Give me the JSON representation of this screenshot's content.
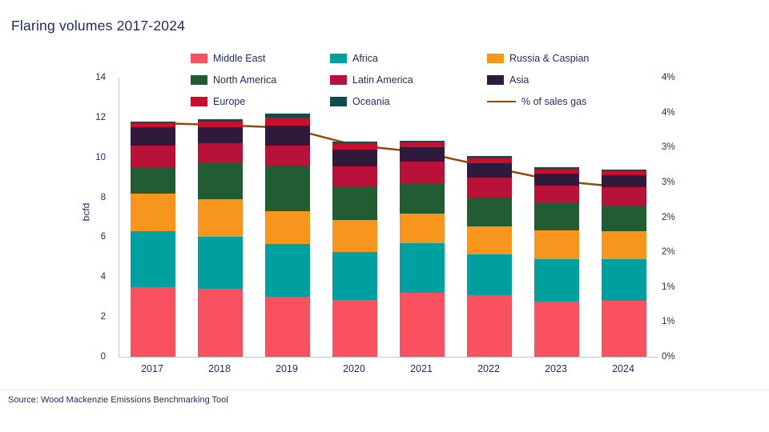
{
  "title": "Flaring volumes 2017-2024",
  "source": "Source: Wood Mackenzie Emissions Benchmarking Tool",
  "colors": {
    "text_navy": "#1F2A5F",
    "axis_gray": "#C6C6C6"
  },
  "legend": [
    {
      "label": "Middle East",
      "color": "#F9515F",
      "type": "box"
    },
    {
      "label": "Africa",
      "color": "#00A0A0",
      "type": "box"
    },
    {
      "label": "Russia & Caspian",
      "color": "#F8951D",
      "type": "box"
    },
    {
      "label": "North America",
      "color": "#215C33",
      "type": "box"
    },
    {
      "label": "Latin America",
      "color": "#B9123A",
      "type": "box"
    },
    {
      "label": "Asia",
      "color": "#2F1A3C",
      "type": "box"
    },
    {
      "label": "Europe",
      "color": "#C8102E",
      "type": "box"
    },
    {
      "label": "Oceania",
      "color": "#0E4D4A",
      "type": "box"
    },
    {
      "label": "% of sales gas",
      "color": "#8B4D08",
      "type": "line"
    }
  ],
  "chart_data": {
    "type": "bar",
    "stacked": true,
    "grid": false,
    "legend_position": "top",
    "categories": [
      "2017",
      "2018",
      "2019",
      "2020",
      "2021",
      "2022",
      "2023",
      "2024"
    ],
    "ylabel_left": "bcfd",
    "left_axis": {
      "min": 0,
      "max": 14,
      "ticks": [
        0,
        2,
        4,
        6,
        8,
        10,
        12,
        14
      ]
    },
    "right_axis": {
      "min": 0,
      "max": 4,
      "tick_labels": [
        "0%",
        "1%",
        "1%",
        "2%",
        "2%",
        "3%",
        "3%",
        "4%",
        "4%"
      ]
    },
    "series": [
      {
        "name": "Middle East",
        "color": "#F9515F",
        "values": [
          3.5,
          3.4,
          3.0,
          2.85,
          3.2,
          3.1,
          2.75,
          2.8
        ]
      },
      {
        "name": "Africa",
        "color": "#00A0A0",
        "values": [
          2.8,
          2.6,
          2.65,
          2.4,
          2.5,
          2.05,
          2.15,
          2.1
        ]
      },
      {
        "name": "Russia & Caspian",
        "color": "#F8951D",
        "values": [
          1.9,
          1.9,
          1.65,
          1.6,
          1.5,
          1.4,
          1.45,
          1.4
        ]
      },
      {
        "name": "North America",
        "color": "#215C33",
        "values": [
          1.3,
          1.8,
          2.3,
          1.7,
          1.5,
          1.45,
          1.35,
          1.3
        ]
      },
      {
        "name": "Latin America",
        "color": "#B9123A",
        "values": [
          1.1,
          1.0,
          1.0,
          1.0,
          1.1,
          1.0,
          0.9,
          0.9
        ]
      },
      {
        "name": "Asia",
        "color": "#2F1A3C",
        "values": [
          0.9,
          0.8,
          1.0,
          0.85,
          0.7,
          0.7,
          0.6,
          0.6
        ]
      },
      {
        "name": "Europe",
        "color": "#C8102E",
        "values": [
          0.2,
          0.3,
          0.4,
          0.3,
          0.25,
          0.25,
          0.2,
          0.2
        ]
      },
      {
        "name": "Oceania",
        "color": "#0E4D4A",
        "values": [
          0.1,
          0.1,
          0.2,
          0.1,
          0.1,
          0.1,
          0.1,
          0.1
        ]
      }
    ],
    "line_series": {
      "name": "% of sales gas",
      "color": "#8B4D08",
      "values": [
        3.35,
        3.32,
        3.28,
        3.03,
        2.93,
        2.72,
        2.52,
        2.43
      ]
    }
  }
}
